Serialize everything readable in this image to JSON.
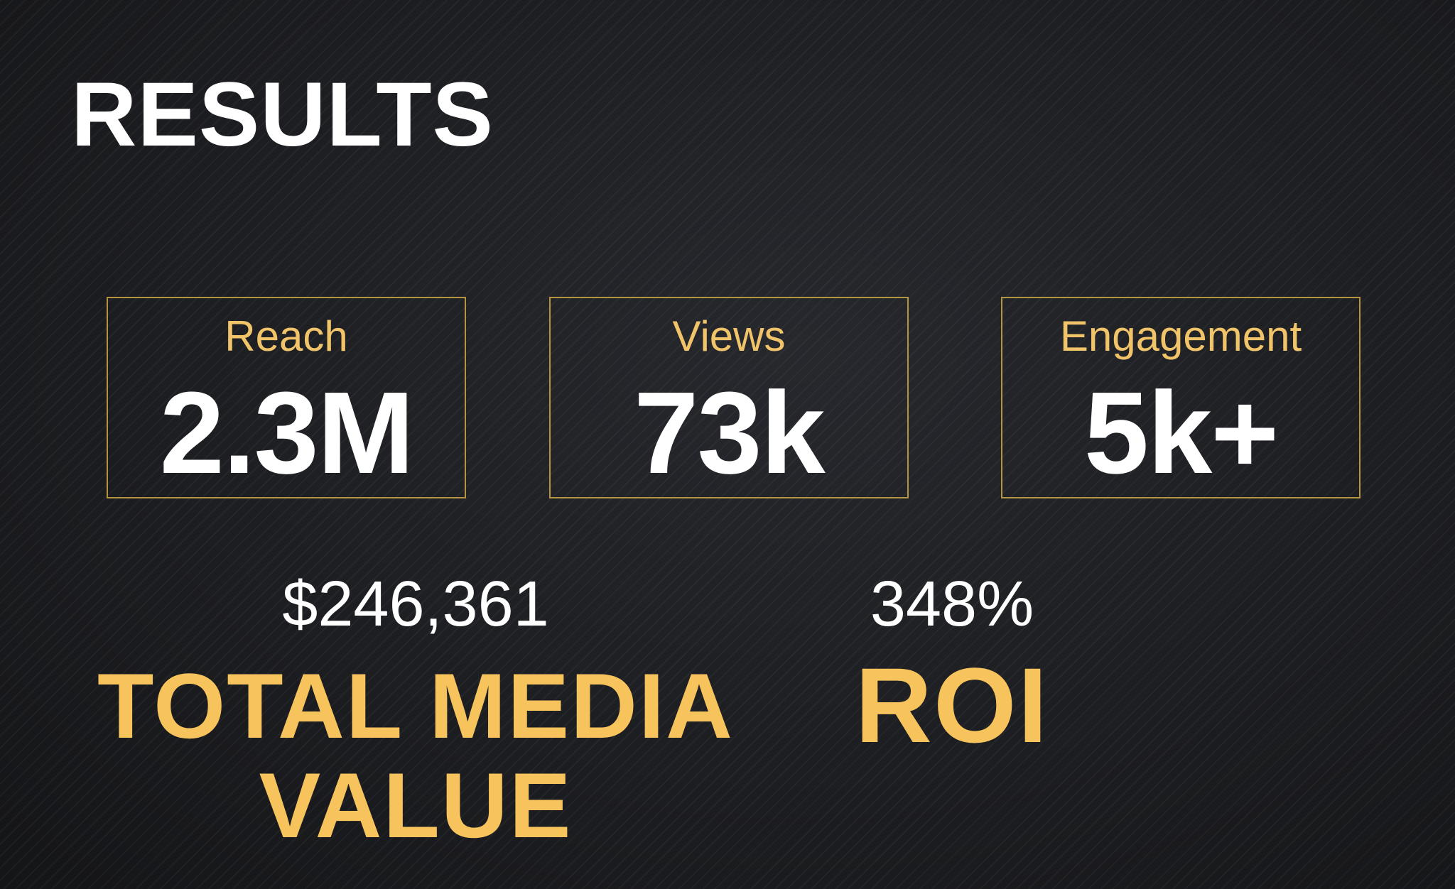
{
  "slide": {
    "title": "RESULTS"
  },
  "stats": [
    {
      "label": "Reach",
      "value": "2.3M"
    },
    {
      "label": "Views",
      "value": "73k"
    },
    {
      "label": "Engagement",
      "value": "5k+"
    }
  ],
  "media_value": {
    "amount": "$246,361",
    "label_line1": "TOTAL MEDIA",
    "label_line2": "VALUE"
  },
  "roi": {
    "amount": "348%",
    "label": "ROI"
  },
  "colors": {
    "background": "#1b1c1f",
    "accent": "#f7c35c",
    "box_border": "#b59440",
    "text": "#ffffff"
  }
}
